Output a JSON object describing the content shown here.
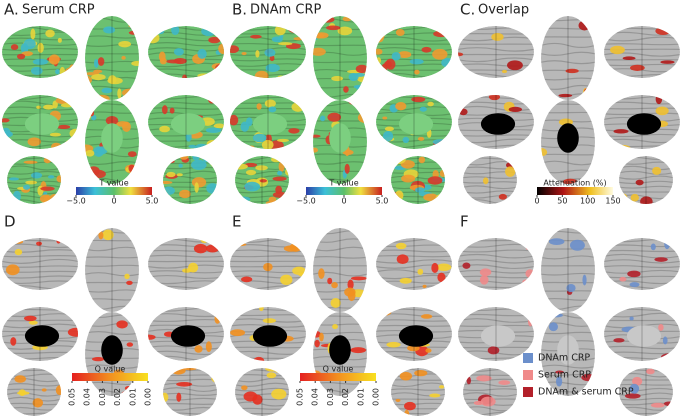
{
  "panels": [
    {
      "letter": "A.",
      "title": "Serum CRP"
    },
    {
      "letter": "B.",
      "title": "DNAm CRP"
    },
    {
      "letter": "C.",
      "title": "Overlap"
    },
    {
      "letter": "D"
    },
    {
      "letter": "E"
    },
    {
      "letter": "F"
    }
  ],
  "colorbars": [
    {
      "title": "T value",
      "ticks": [
        "−5.0",
        "0",
        "5.0"
      ]
    },
    {
      "title": "T value",
      "ticks": [
        "−5.0",
        "0",
        "5.0"
      ]
    },
    {
      "title": "Attenuation (%)",
      "ticks": [
        "0",
        "50",
        "100",
        "150"
      ]
    },
    {
      "title": "Q value",
      "ticks": [
        "0.05",
        "0.04",
        "0.03",
        "0.02",
        "0.01",
        "0.00"
      ]
    },
    {
      "title": "Q value",
      "ticks": [
        "0.05",
        "0.04",
        "0.03",
        "0.02",
        "0.01",
        "0.00"
      ]
    }
  ],
  "legend": [
    {
      "label": "DNAm CRP",
      "color": "#6b8fcb"
    },
    {
      "label": "Serum CRP",
      "color": "#f08a8a"
    },
    {
      "label": "DNAm & serum CRP",
      "color": "#b3202a"
    }
  ]
}
